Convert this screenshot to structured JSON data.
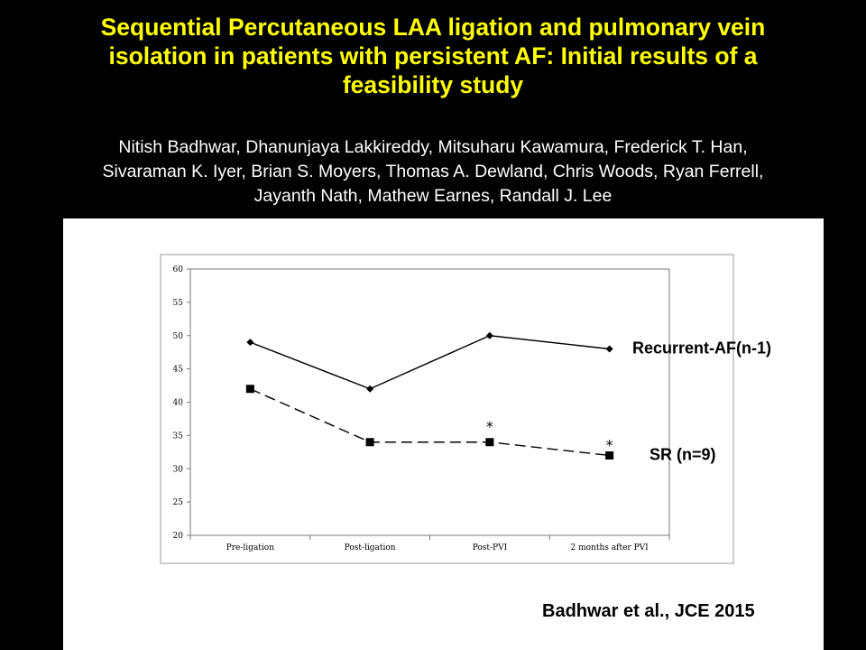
{
  "slide": {
    "title_lines": [
      "Sequential Percutaneous LAA ligation and pulmonary vein",
      "isolation in patients with persistent AF: Initial results of a",
      "feasibility study"
    ],
    "author_lines": [
      "Nitish Badhwar, Dhanunjaya Lakkireddy, Mitsuharu Kawamura, Frederick T. Han,",
      "Sivaraman K. Iyer, Brian S. Moyers, Thomas A. Dewland, Chris Woods, Ryan Ferrell,",
      "Jayanth Nath, Mathew Earnes, Randall J. Lee"
    ],
    "citation": "Badhwar et al., JCE 2015",
    "colors": {
      "background": "#000000",
      "title": "#ffff00",
      "authors": "#ffffff",
      "panel": "#ffffff"
    }
  },
  "chart_data": {
    "type": "line",
    "categories": [
      "Pre-ligation",
      "Post-ligation",
      "Post-PVI",
      "2 months after PVI"
    ],
    "ylim": [
      20,
      60
    ],
    "yticks": [
      20,
      25,
      30,
      35,
      40,
      45,
      50,
      55,
      60
    ],
    "grid": false,
    "series": [
      {
        "name": "Recurrent-AF(n-1)",
        "values": [
          49,
          42,
          50,
          48
        ],
        "marker": "diamond",
        "line": "solid"
      },
      {
        "name": "SR (n=9)",
        "values": [
          42,
          34,
          34,
          32
        ],
        "marker": "square",
        "line": "dashed"
      }
    ],
    "annotations": [
      {
        "text": "*",
        "category": "Post-PVI"
      },
      {
        "text": "*",
        "category": "2 months after PVI"
      }
    ]
  }
}
